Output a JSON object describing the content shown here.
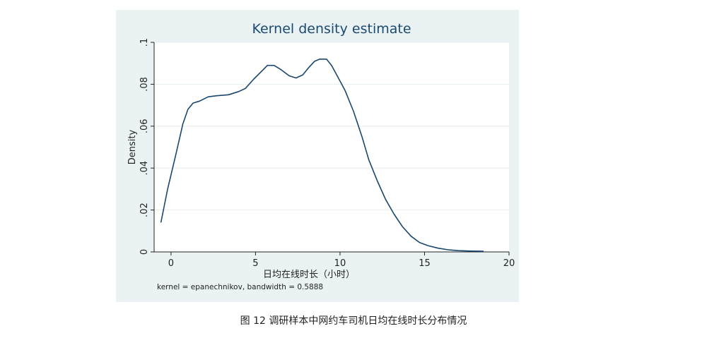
{
  "chart_data": {
    "type": "line",
    "title": "Kernel density estimate",
    "xlabel": "日均在线时长（小时）",
    "ylabel": "Density",
    "xlim": [
      -1,
      20
    ],
    "ylim": [
      0,
      0.1
    ],
    "xticks": [
      0,
      5,
      10,
      15,
      20
    ],
    "xtick_labels": [
      "0",
      "5",
      "10",
      "15",
      "20"
    ],
    "yticks": [
      0,
      0.02,
      0.04,
      0.06,
      0.08,
      0.1
    ],
    "ytick_labels": [
      "0",
      ".02",
      ".04",
      ".06",
      ".08",
      ".1"
    ],
    "grid": true,
    "note": "kernel = epanechnikov, bandwidth = 0.5888",
    "series": [
      {
        "color": "#1a476f",
        "x": [
          -0.6,
          -0.2,
          0.3,
          0.7,
          1.0,
          1.3,
          1.7,
          2.2,
          2.7,
          3.4,
          4.0,
          4.4,
          4.9,
          5.4,
          5.7,
          6.1,
          6.5,
          7.0,
          7.4,
          7.8,
          8.1,
          8.5,
          8.8,
          9.2,
          9.5,
          9.9,
          10.3,
          10.8,
          11.3,
          11.7,
          12.2,
          12.7,
          13.2,
          13.7,
          14.2,
          14.7,
          15.2,
          15.8,
          16.4,
          17.0,
          17.8,
          18.5
        ],
        "y": [
          0.014,
          0.03,
          0.047,
          0.061,
          0.068,
          0.071,
          0.072,
          0.074,
          0.0745,
          0.075,
          0.0765,
          0.078,
          0.0825,
          0.0865,
          0.089,
          0.089,
          0.087,
          0.084,
          0.083,
          0.0845,
          0.0875,
          0.091,
          0.092,
          0.092,
          0.089,
          0.083,
          0.077,
          0.067,
          0.055,
          0.044,
          0.034,
          0.025,
          0.018,
          0.012,
          0.0075,
          0.0045,
          0.003,
          0.0018,
          0.001,
          0.0006,
          0.0004,
          0.0003
        ]
      }
    ]
  },
  "caption": "图 12 调研样本中网约车司机日均在线时长分布情况"
}
